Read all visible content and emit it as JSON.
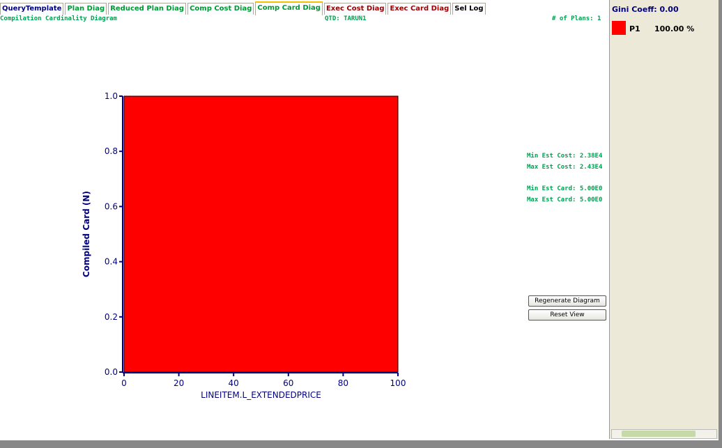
{
  "tabs": [
    {
      "label": "QueryTemplate",
      "color": "#000080"
    },
    {
      "label": "Plan Diag",
      "color": "#009933"
    },
    {
      "label": "Reduced Plan Diag",
      "color": "#009933"
    },
    {
      "label": "Comp Cost Diag",
      "color": "#009933"
    },
    {
      "label": "Comp Card Diag",
      "color": "#009933",
      "selected": true
    },
    {
      "label": "Exec Cost Diag",
      "color": "#990000"
    },
    {
      "label": "Exec Card Diag",
      "color": "#990000"
    },
    {
      "label": "Sel Log",
      "color": "#000000"
    }
  ],
  "header": {
    "title": "Compilation Cardinality Diagram",
    "qtd": "QTD: TARUN1",
    "plans": "# of Plans: 1"
  },
  "chart_data": {
    "type": "area",
    "x_label": "LINEITEM.L_EXTENDEDPRICE",
    "y_label": "Compiled Card (N)",
    "series": [
      {
        "name": "P1",
        "color": "#ff0000",
        "x": [
          0,
          100
        ],
        "values": [
          1,
          1
        ]
      }
    ],
    "xlim": [
      0,
      100
    ],
    "xticks": [
      0,
      20,
      40,
      60,
      80,
      100
    ],
    "ylim": [
      0,
      1
    ],
    "yticks": [
      {
        "value": 0,
        "label": "0.0"
      },
      0.2,
      0.4,
      0.6,
      0.8,
      {
        "value": 1,
        "label": "1.0"
      }
    ]
  },
  "stats": [
    "Min Est Cost: 2.38E4",
    "Max Est Cost: 2.43E4",
    "Min Est Card: 5.00E0",
    "Max Est Card: 5.00E0"
  ],
  "buttons": [
    "Regenerate Diagram",
    "Reset View"
  ],
  "sidebar": {
    "gini": "Gini Coeff: 0.00",
    "legend": [
      {
        "share": "100.00 %"
      }
    ]
  }
}
